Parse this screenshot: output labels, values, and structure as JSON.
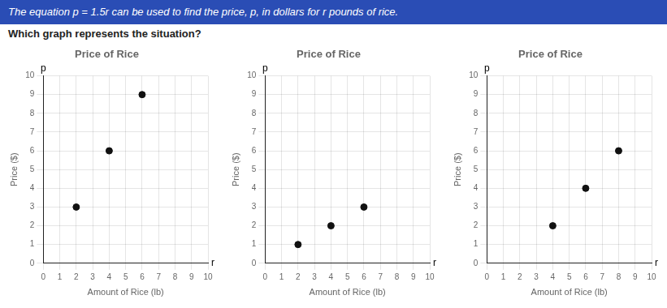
{
  "title": "The equation p = 1.5r can be used to find the price, p, in dollars for r pounds of rice.",
  "subtitle": "Which graph represents the situation?",
  "chart_data": [
    {
      "type": "scatter",
      "title": "Price of Rice",
      "x_label": "Amount of Rice (lb)",
      "y_label": "Price ($)",
      "annotations": [
        "p",
        "r"
      ],
      "x": [
        2,
        4,
        6
      ],
      "values": [
        3,
        6,
        9
      ],
      "color": "#111111",
      "xlim": [
        0,
        10
      ],
      "ylim": [
        0,
        10
      ],
      "xticks": [
        0,
        1,
        2,
        3,
        4,
        5,
        6,
        7,
        8,
        9,
        10
      ],
      "yticks": [
        0,
        1,
        2,
        3,
        4,
        5,
        6,
        7,
        8,
        9,
        10
      ],
      "grid": true
    },
    {
      "type": "scatter",
      "title": "Price of Rice",
      "x_label": "Amount of Rice (lb)",
      "y_label": "Price ($)",
      "annotations": [
        "p",
        "r"
      ],
      "x": [
        2,
        4,
        6
      ],
      "values": [
        1,
        2,
        3
      ],
      "color": "#111111",
      "xlim": [
        0,
        10
      ],
      "ylim": [
        0,
        10
      ],
      "xticks": [
        0,
        1,
        2,
        3,
        4,
        5,
        6,
        7,
        8,
        9,
        10
      ],
      "yticks": [
        0,
        1,
        2,
        3,
        4,
        5,
        6,
        7,
        8,
        9,
        10
      ],
      "grid": true
    },
    {
      "type": "scatter",
      "title": "Price of Rice",
      "x_label": "Amount of Rice (lb)",
      "y_label": "Price ($)",
      "annotations": [
        "p",
        "r"
      ],
      "x": [
        4,
        6,
        8
      ],
      "values": [
        2,
        4,
        6
      ],
      "color": "#111111",
      "xlim": [
        0,
        10
      ],
      "ylim": [
        0,
        10
      ],
      "xticks": [
        0,
        1,
        2,
        3,
        4,
        5,
        6,
        7,
        8,
        9,
        10
      ],
      "yticks": [
        0,
        1,
        2,
        3,
        4,
        5,
        6,
        7,
        8,
        9,
        10
      ],
      "grid": true
    }
  ]
}
